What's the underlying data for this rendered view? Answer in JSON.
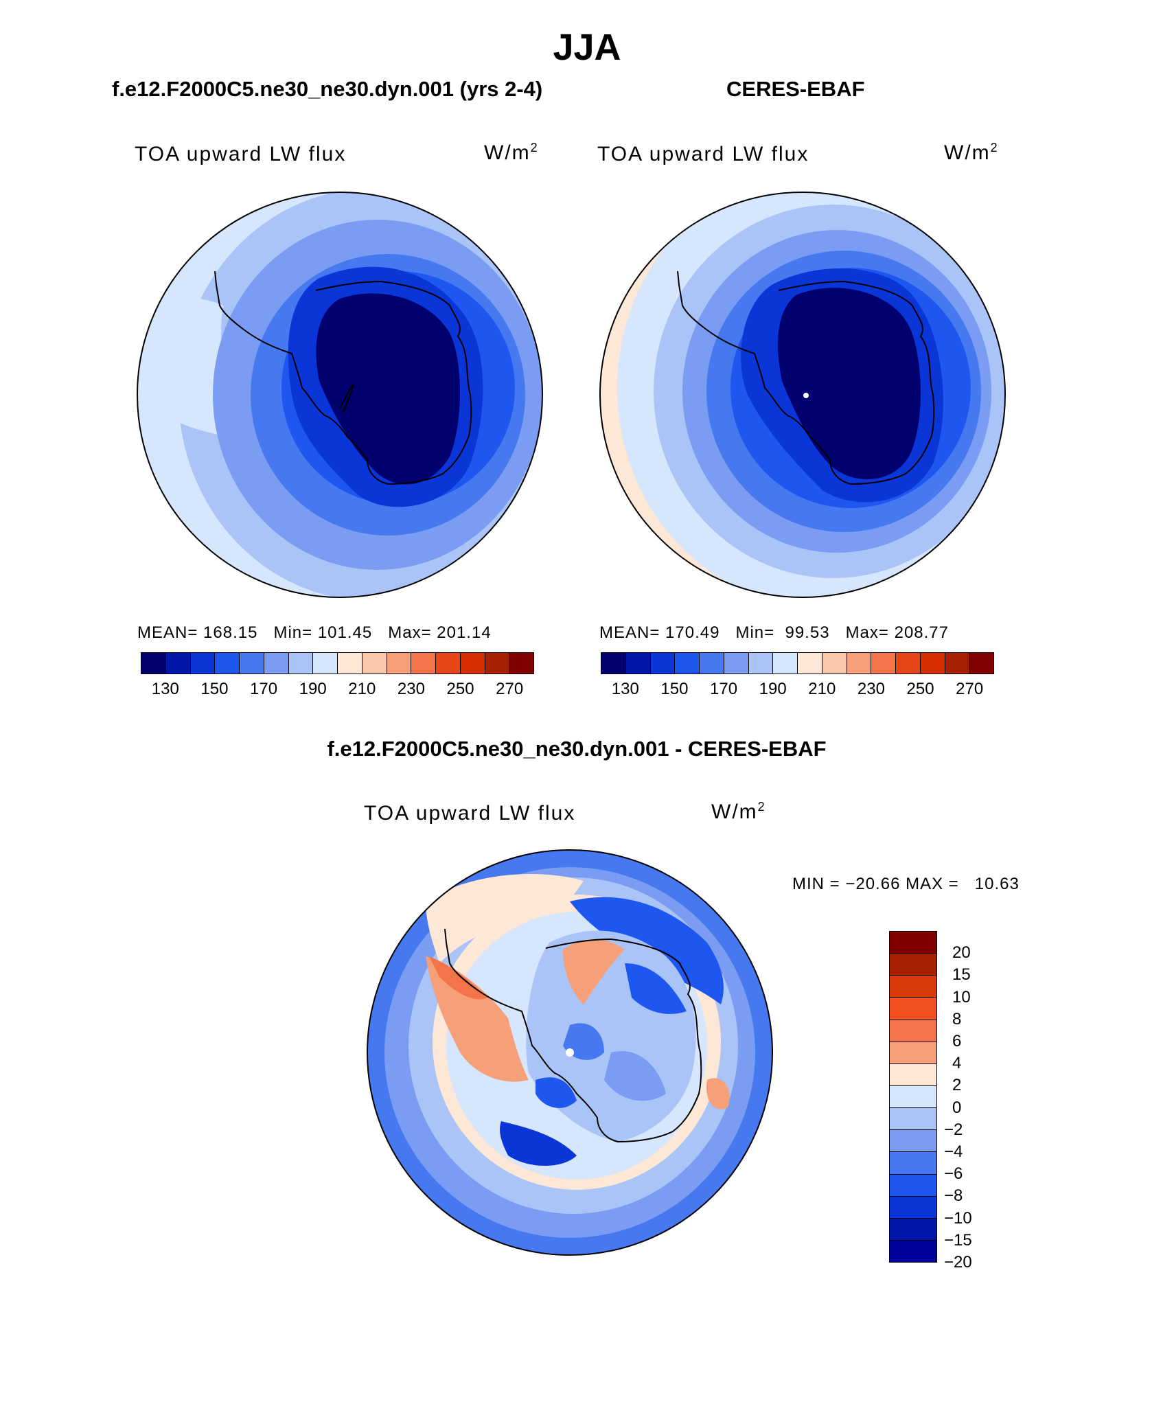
{
  "title": "JJA",
  "panels": [
    {
      "case_title": "f.e12.F2000C5.ne30_ne30.dyn.001 (yrs 2-4)",
      "variable": "TOA upward LW flux",
      "units_base": "W/m",
      "units_exp": "2",
      "stats": {
        "mean_label": "MEAN=",
        "mean": "168.15",
        "min_label": "Min=",
        "min": "101.45",
        "max_label": "Max=",
        "max": "201.14"
      }
    },
    {
      "case_title": "CERES-EBAF",
      "variable": "TOA upward LW flux",
      "units_base": "W/m",
      "units_exp": "2",
      "stats": {
        "mean_label": "MEAN=",
        "mean": "170.49",
        "min_label": "Min=",
        "min": "99.53",
        "max_label": "Max=",
        "max": "208.77"
      }
    }
  ],
  "abs_colorbar": {
    "colors": [
      "#00006e",
      "#0016a8",
      "#0a36d8",
      "#1e56f0",
      "#4679f0",
      "#7a9cf2",
      "#aac4f8",
      "#d6e6fc",
      "#fde7d6",
      "#fbc7ab",
      "#f6a07a",
      "#f27448",
      "#e84618",
      "#d82e00",
      "#a82000",
      "#800000"
    ],
    "tick_labels": [
      "130",
      "150",
      "170",
      "190",
      "210",
      "230",
      "250",
      "270"
    ]
  },
  "diff_panel": {
    "case_title": "f.e12.F2000C5.ne30_ne30.dyn.001 - CERES-EBAF",
    "variable": "TOA upward LW flux",
    "units_base": "W/m",
    "units_exp": "2",
    "minmax": "MIN = −20.66 MAX =   10.63"
  },
  "diff_colorbar": {
    "colors": [
      "#800000",
      "#a82000",
      "#d83a08",
      "#f05020",
      "#f27448",
      "#f6a07a",
      "#fde7d6",
      "#d6e6fc",
      "#aac4f8",
      "#7a9cf2",
      "#4679f0",
      "#1e56f0",
      "#0a36d8",
      "#0016a8",
      "#00009a"
    ],
    "tick_labels": [
      "20",
      "15",
      "10",
      "8",
      "6",
      "4",
      "2",
      "0",
      "−2",
      "−4",
      "−6",
      "−8",
      "−10",
      "−15",
      "−20"
    ]
  },
  "chart_data": {
    "type": "heatmap",
    "title": "JJA",
    "variable": "TOA upward LW flux",
    "units": "W/m2",
    "projection": "south polar stereographic",
    "panels": [
      {
        "name": "f.e12.F2000C5.ne30_ne30.dyn.001 (yrs 2-4)",
        "mean": 168.15,
        "min": 101.45,
        "max": 201.14,
        "contour_levels": [
          130,
          140,
          150,
          160,
          170,
          180,
          190,
          200,
          210,
          220,
          230,
          240,
          250,
          260,
          270
        ]
      },
      {
        "name": "CERES-EBAF",
        "mean": 170.49,
        "min": 99.53,
        "max": 208.77,
        "contour_levels": [
          130,
          140,
          150,
          160,
          170,
          180,
          190,
          200,
          210,
          220,
          230,
          240,
          250,
          260,
          270
        ]
      },
      {
        "name": "f.e12.F2000C5.ne30_ne30.dyn.001 - CERES-EBAF",
        "min": -20.66,
        "max": 10.63,
        "contour_levels": [
          -20,
          -15,
          -10,
          -8,
          -6,
          -4,
          -2,
          0,
          2,
          4,
          6,
          8,
          10,
          15,
          20
        ]
      }
    ]
  }
}
